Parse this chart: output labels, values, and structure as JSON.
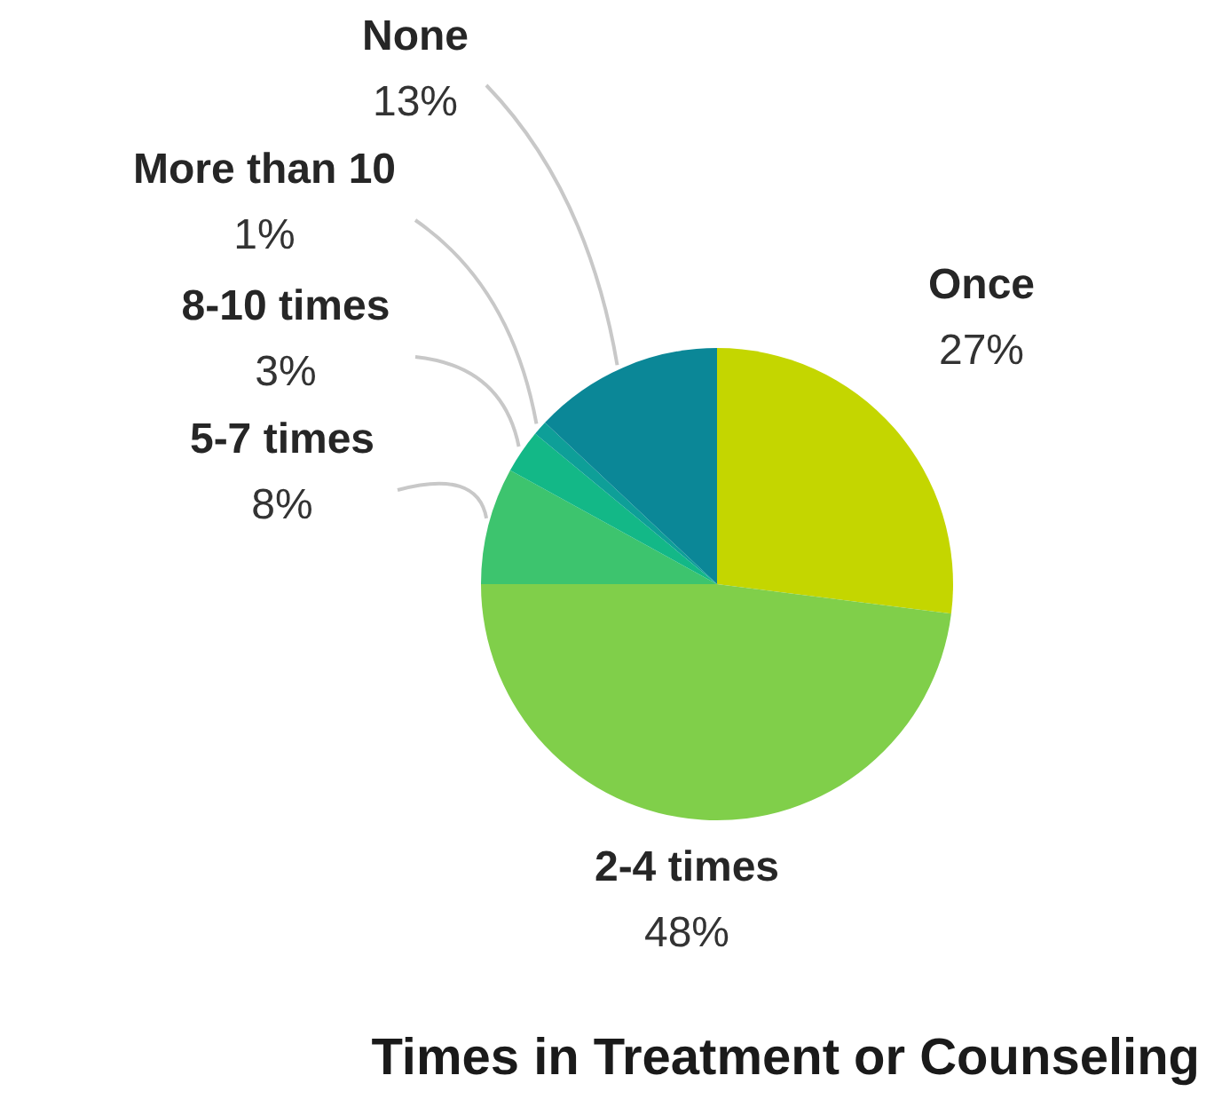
{
  "chart_data": {
    "type": "pie",
    "title": "Times in Treatment or Counseling",
    "categories": [
      "Once",
      "2-4 times",
      "5-7 times",
      "8-10 times",
      "More than 10",
      "None"
    ],
    "values": [
      27,
      48,
      8,
      3,
      1,
      13
    ],
    "colors": [
      "#c4d600",
      "#80cf4a",
      "#3dc46e",
      "#13b887",
      "#0e9f98",
      "#0b8797"
    ],
    "value_labels": [
      "27%",
      "48%",
      "8%",
      "3%",
      "1%",
      "13%"
    ]
  }
}
